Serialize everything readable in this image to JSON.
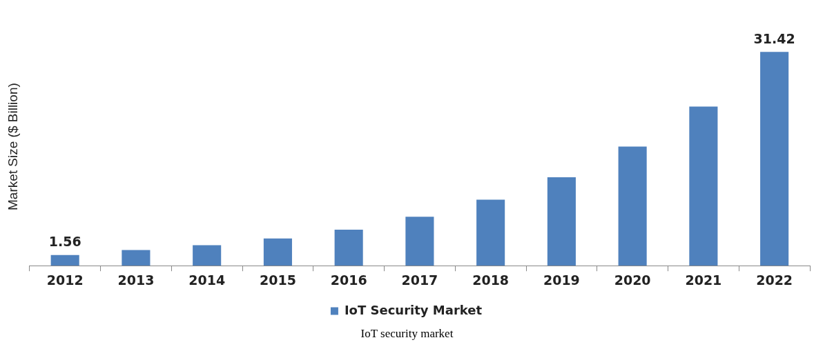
{
  "chart_data": {
    "type": "bar",
    "ylabel": "Market Size ($ Billion)",
    "categories": [
      "2012",
      "2013",
      "2014",
      "2015",
      "2016",
      "2017",
      "2018",
      "2019",
      "2020",
      "2021",
      "2022"
    ],
    "series": [
      {
        "name": "IoT Security Market",
        "color": "#4f81bd",
        "values": [
          1.56,
          2.3,
          3.0,
          4.0,
          5.3,
          7.2,
          9.7,
          13.0,
          17.5,
          23.4,
          31.42
        ],
        "value_labels": [
          "1.56",
          null,
          null,
          null,
          null,
          null,
          null,
          null,
          null,
          null,
          "31.42"
        ]
      }
    ],
    "legend": "bottom",
    "grid": false,
    "annotations": [
      "IoT security market"
    ]
  }
}
